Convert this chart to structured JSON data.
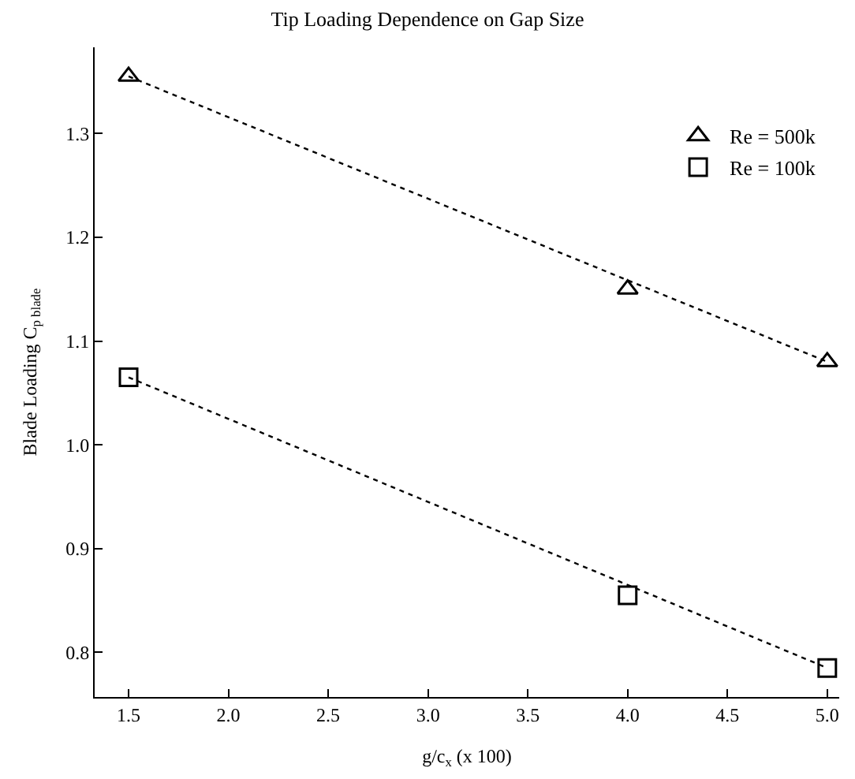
{
  "chart_data": {
    "type": "scatter",
    "title": "Tip Loading Dependence on Gap Size",
    "xlabel": "g/c$_{x}$ (x 100)",
    "ylabel": "Blade Loading C$_{p blade}$",
    "xlim": [
      1.33,
      5.06
    ],
    "xticks": [
      {
        "value": 1.5,
        "label": "1.5"
      },
      {
        "value": 2.0,
        "label": "2.0"
      },
      {
        "value": 2.5,
        "label": "2.5"
      },
      {
        "value": 3.0,
        "label": "3.0"
      },
      {
        "value": 3.5,
        "label": "3.5"
      },
      {
        "value": 4.0,
        "label": "4.0"
      },
      {
        "value": 4.5,
        "label": "4.5"
      },
      {
        "value": 5.0,
        "label": "5.0"
      }
    ],
    "ylim": [
      0.757,
      1.383
    ],
    "yticks": [
      {
        "value": 0.8,
        "label": "0.8"
      },
      {
        "value": 0.9,
        "label": "0.9"
      },
      {
        "value": 1.0,
        "label": "1.0"
      },
      {
        "value": 1.1,
        "label": "1.1"
      },
      {
        "value": 1.2,
        "label": "1.2"
      },
      {
        "value": 1.3,
        "label": "1.3"
      }
    ],
    "legend": "top right",
    "series": [
      {
        "type": "line",
        "color": "#000000",
        "line_style": "dotted",
        "marker": "none",
        "x": [
          1.5,
          5.0
        ],
        "values": [
          1.355,
          1.08
        ]
      },
      {
        "type": "line",
        "color": "#000000",
        "line_style": "dotted",
        "marker": "none",
        "x": [
          1.5,
          5.0
        ],
        "values": [
          1.065,
          0.785
        ]
      },
      {
        "name": "Re = 500k",
        "color": "#000000",
        "marker": "triangle",
        "x": [
          1.5,
          4.0,
          5.0
        ],
        "values": [
          1.355,
          1.15,
          1.08
        ]
      },
      {
        "name": "Re = 100k",
        "color": "#000000",
        "marker": "square",
        "x": [
          1.5,
          4.0,
          5.0
        ],
        "values": [
          1.065,
          0.855,
          0.785
        ]
      }
    ]
  }
}
